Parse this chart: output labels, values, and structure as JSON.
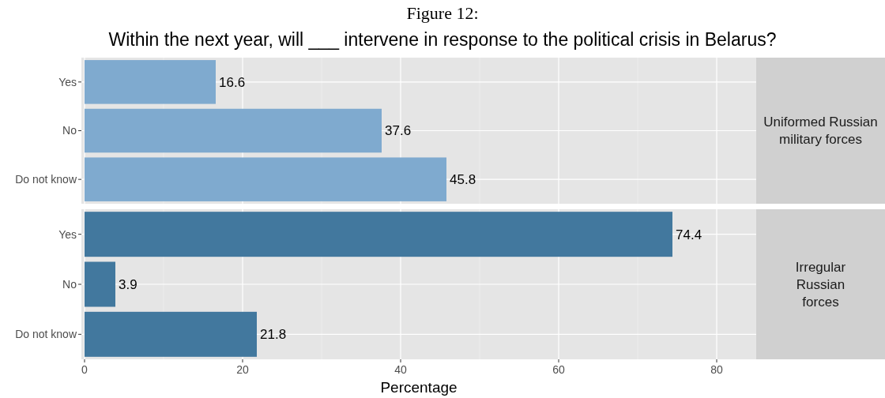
{
  "chart_data": [
    {
      "type": "bar",
      "orientation": "horizontal",
      "title": "Figure 12:",
      "subtitle": "Within the next year, will ___ intervene in response to the political crisis in Belarus?",
      "categories": [
        "Yes",
        "No",
        "Do not know"
      ],
      "values": [
        16.6,
        37.6,
        45.8
      ],
      "color": "#7faacf",
      "xlim": [
        -0.4,
        85
      ],
      "xticks": [
        0,
        20,
        40,
        60,
        80
      ],
      "grid": true,
      "data_labels": true,
      "tick_labels": "y",
      "annotations": [
        "Uniformed Russian military forces"
      ]
    },
    {
      "type": "bar",
      "orientation": "horizontal",
      "categories": [
        "Yes",
        "No",
        "Do not know"
      ],
      "values": [
        74.4,
        3.9,
        21.8
      ],
      "color": "#42789e",
      "xlim": [
        -0.4,
        85
      ],
      "xticks": [
        0,
        20,
        40,
        60,
        80
      ],
      "grid": true,
      "data_labels": true,
      "xlabel": "Percentage",
      "annotations": [
        "Irregular Russian forces"
      ]
    }
  ]
}
